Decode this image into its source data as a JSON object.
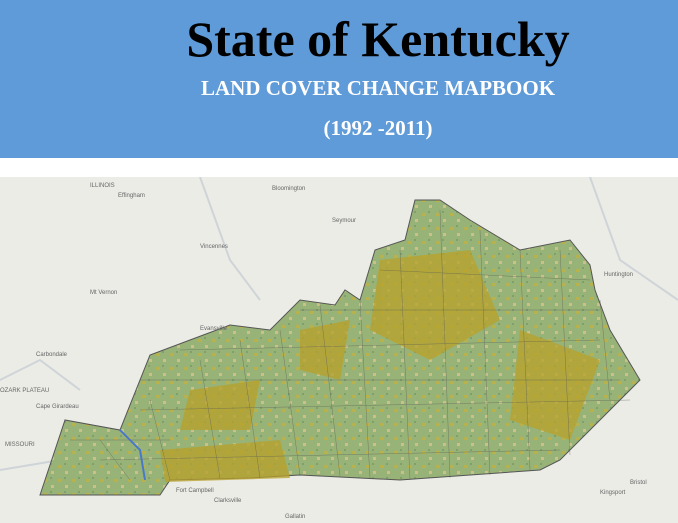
{
  "header": {
    "title": "State of Kentucky",
    "subtitle": "LAND COVER CHANGE MAPBOOK",
    "years": "(1992 -2011)"
  },
  "map": {
    "labels": [
      "ILLINOIS",
      "Effingham",
      "Bloomington",
      "Seymour",
      "Vincennes",
      "Mt Vernon",
      "Evansville",
      "Carbondale",
      "OZARK PLATEAU",
      "Cape Girardeau",
      "MISSOURI",
      "Fort Campbell",
      "Clarksville",
      "Gallatin",
      "Huntington",
      "Kingsport",
      "Bristol"
    ]
  }
}
